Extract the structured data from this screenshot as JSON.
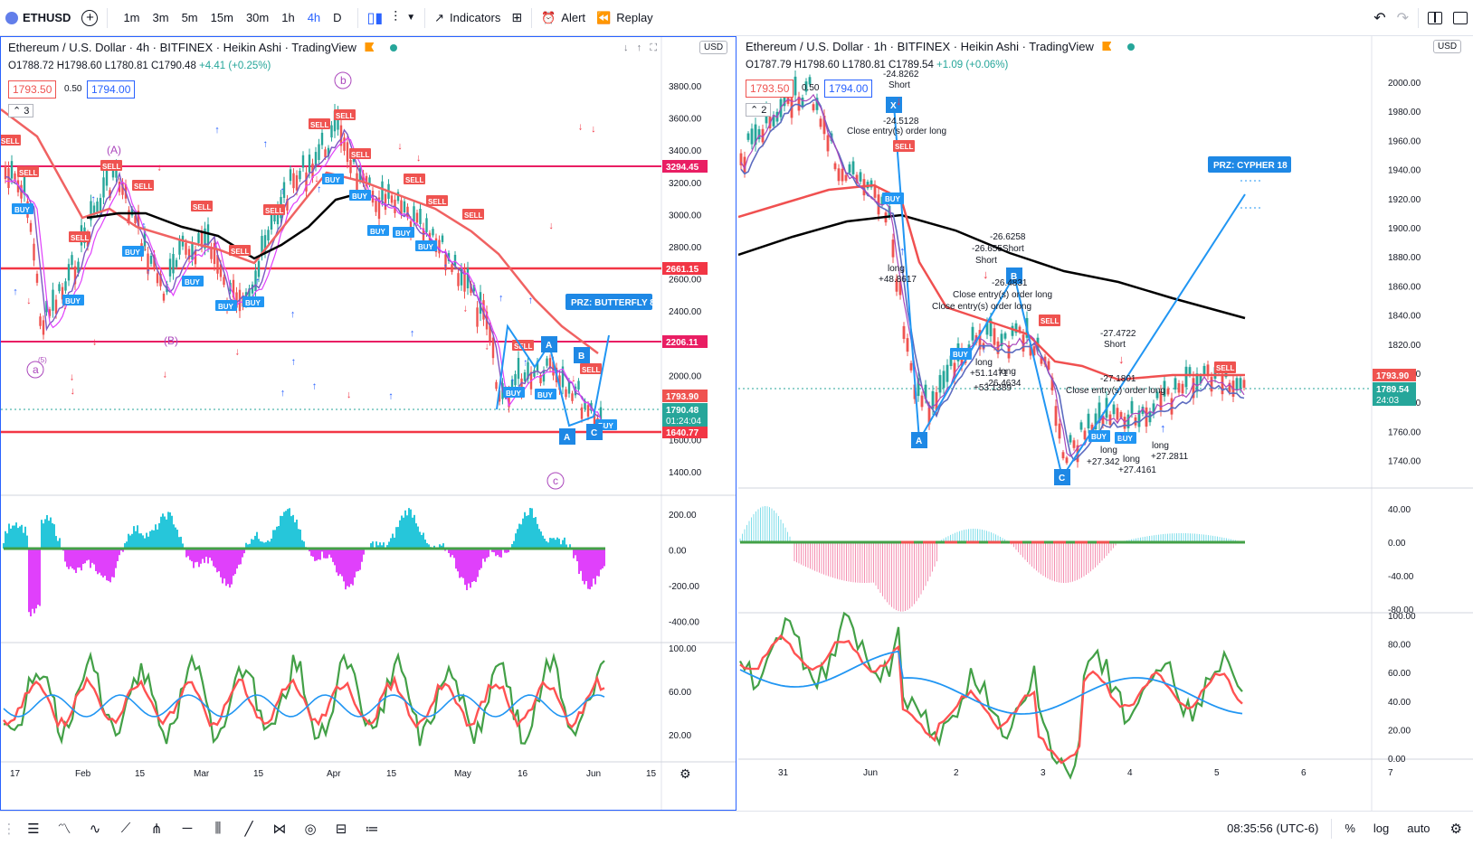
{
  "toolbar": {
    "symbol": "ETHUSD",
    "timeframes": [
      "1m",
      "3m",
      "5m",
      "15m",
      "30m",
      "1h",
      "4h",
      "D"
    ],
    "active_timeframe": "4h",
    "indicators_label": "Indicators",
    "alert_label": "Alert",
    "replay_label": "Replay"
  },
  "left_pane": {
    "title": "Ethereum / U.S. Dollar · 4h · BITFINEX · Heikin Ashi · TradingView",
    "ohlc": {
      "o": "O1788.72",
      "h": "H1798.60",
      "l": "L1780.81",
      "c": "C1790.48",
      "chg": "+4.41 (+0.25%)"
    },
    "sell_price": "1793.50",
    "spread": "0.50",
    "buy_price": "1794.00",
    "indicator_count": "3",
    "currency": "USD",
    "price_axis": [
      "3800.00",
      "3600.00",
      "3400.00",
      "3200.00",
      "3000.00",
      "2800.00",
      "2600.00",
      "2400.00",
      "2200.00",
      "2000.00",
      "1800.00",
      "1600.00",
      "1400.00"
    ],
    "level_tags": [
      "3294.45",
      "2661.15",
      "2206.11",
      "1793.90",
      "1790.48",
      "01:24:04",
      "1640.77"
    ],
    "osc1_axis": [
      "200.00",
      "0.00",
      "-200.00",
      "-400.00"
    ],
    "osc2_axis": [
      "100.00",
      "60.00",
      "20.00"
    ],
    "time_axis": [
      "17",
      "Feb",
      "15",
      "Mar",
      "15",
      "Apr",
      "15",
      "May",
      "16",
      "Jun",
      "15"
    ],
    "prz_label": "PRZ: BUTTERFLY 8",
    "wave_labels": [
      "(A)",
      "(B)",
      "a",
      "b",
      "c",
      "(5)"
    ],
    "point_labels": [
      "A",
      "B",
      "C"
    ],
    "buy_label": "BUY",
    "sell_label": "SELL"
  },
  "right_pane": {
    "title": "Ethereum / U.S. Dollar · 1h · BITFINEX · Heikin Ashi · TradingView",
    "ohlc": {
      "o": "O1787.79",
      "h": "H1798.60",
      "l": "L1780.81",
      "c": "C1789.54",
      "chg": "+1.09 (+0.06%)"
    },
    "sell_price": "1793.50",
    "spread": "0.50",
    "buy_price": "1794.00",
    "indicator_count": "2",
    "currency": "USD",
    "price_axis": [
      "2000.00",
      "1980.00",
      "1960.00",
      "1940.00",
      "1920.00",
      "1900.00",
      "1880.00",
      "1860.00",
      "1840.00",
      "1820.00",
      "1800.00",
      "1780.00",
      "1760.00",
      "1740.00"
    ],
    "level_tags": [
      "1793.90",
      "1789.54",
      "24:03"
    ],
    "osc1_axis": [
      "40.00",
      "0.00",
      "-40.00",
      "-80.00"
    ],
    "osc2_axis": [
      "100.00",
      "80.00",
      "60.00",
      "40.00",
      "20.00",
      "0.00"
    ],
    "time_axis": [
      "31",
      "Jun",
      "2",
      "3",
      "4",
      "5",
      "6",
      "7"
    ],
    "prz_label": "PRZ: CYPHER 18",
    "point_labels": [
      "X",
      "A",
      "B",
      "C"
    ],
    "buy_label": "BUY",
    "sell_label": "SELL",
    "annotations": [
      {
        "text": "-24.8262"
      },
      {
        "text": "Short"
      },
      {
        "text": "-24.5128"
      },
      {
        "text": "Close entry(s) order long"
      },
      {
        "text": "long"
      },
      {
        "text": "+48.8617"
      },
      {
        "text": "-26.6258"
      },
      {
        "text": "-26.655Short"
      },
      {
        "text": "Short"
      },
      {
        "text": "-26.4831"
      },
      {
        "text": "Close entry(s) order long"
      },
      {
        "text": "Close entry(s) order long"
      },
      {
        "text": "long"
      },
      {
        "text": "+51.1471"
      },
      {
        "text": "long"
      },
      {
        "text": "-26.4634"
      },
      {
        "text": "+53.1389"
      },
      {
        "text": "-27.4722"
      },
      {
        "text": "Short"
      },
      {
        "text": "-27.1801"
      },
      {
        "text": "Close entry(s) order long"
      },
      {
        "text": "long"
      },
      {
        "text": "+27.342"
      },
      {
        "text": "long"
      },
      {
        "text": "+27.4161"
      },
      {
        "text": "long"
      },
      {
        "text": "+27.2811"
      }
    ]
  },
  "bottombar": {
    "time": "08:35:56 (UTC-6)",
    "percent": "%",
    "log": "log",
    "auto": "auto"
  },
  "colors": {
    "accent": "#2962ff",
    "sell": "#ef5350",
    "buy": "#2196f3",
    "level_line": "#e91e63",
    "green": "#43a047",
    "magenta": "#e040fb",
    "cyan": "#26c6da"
  }
}
